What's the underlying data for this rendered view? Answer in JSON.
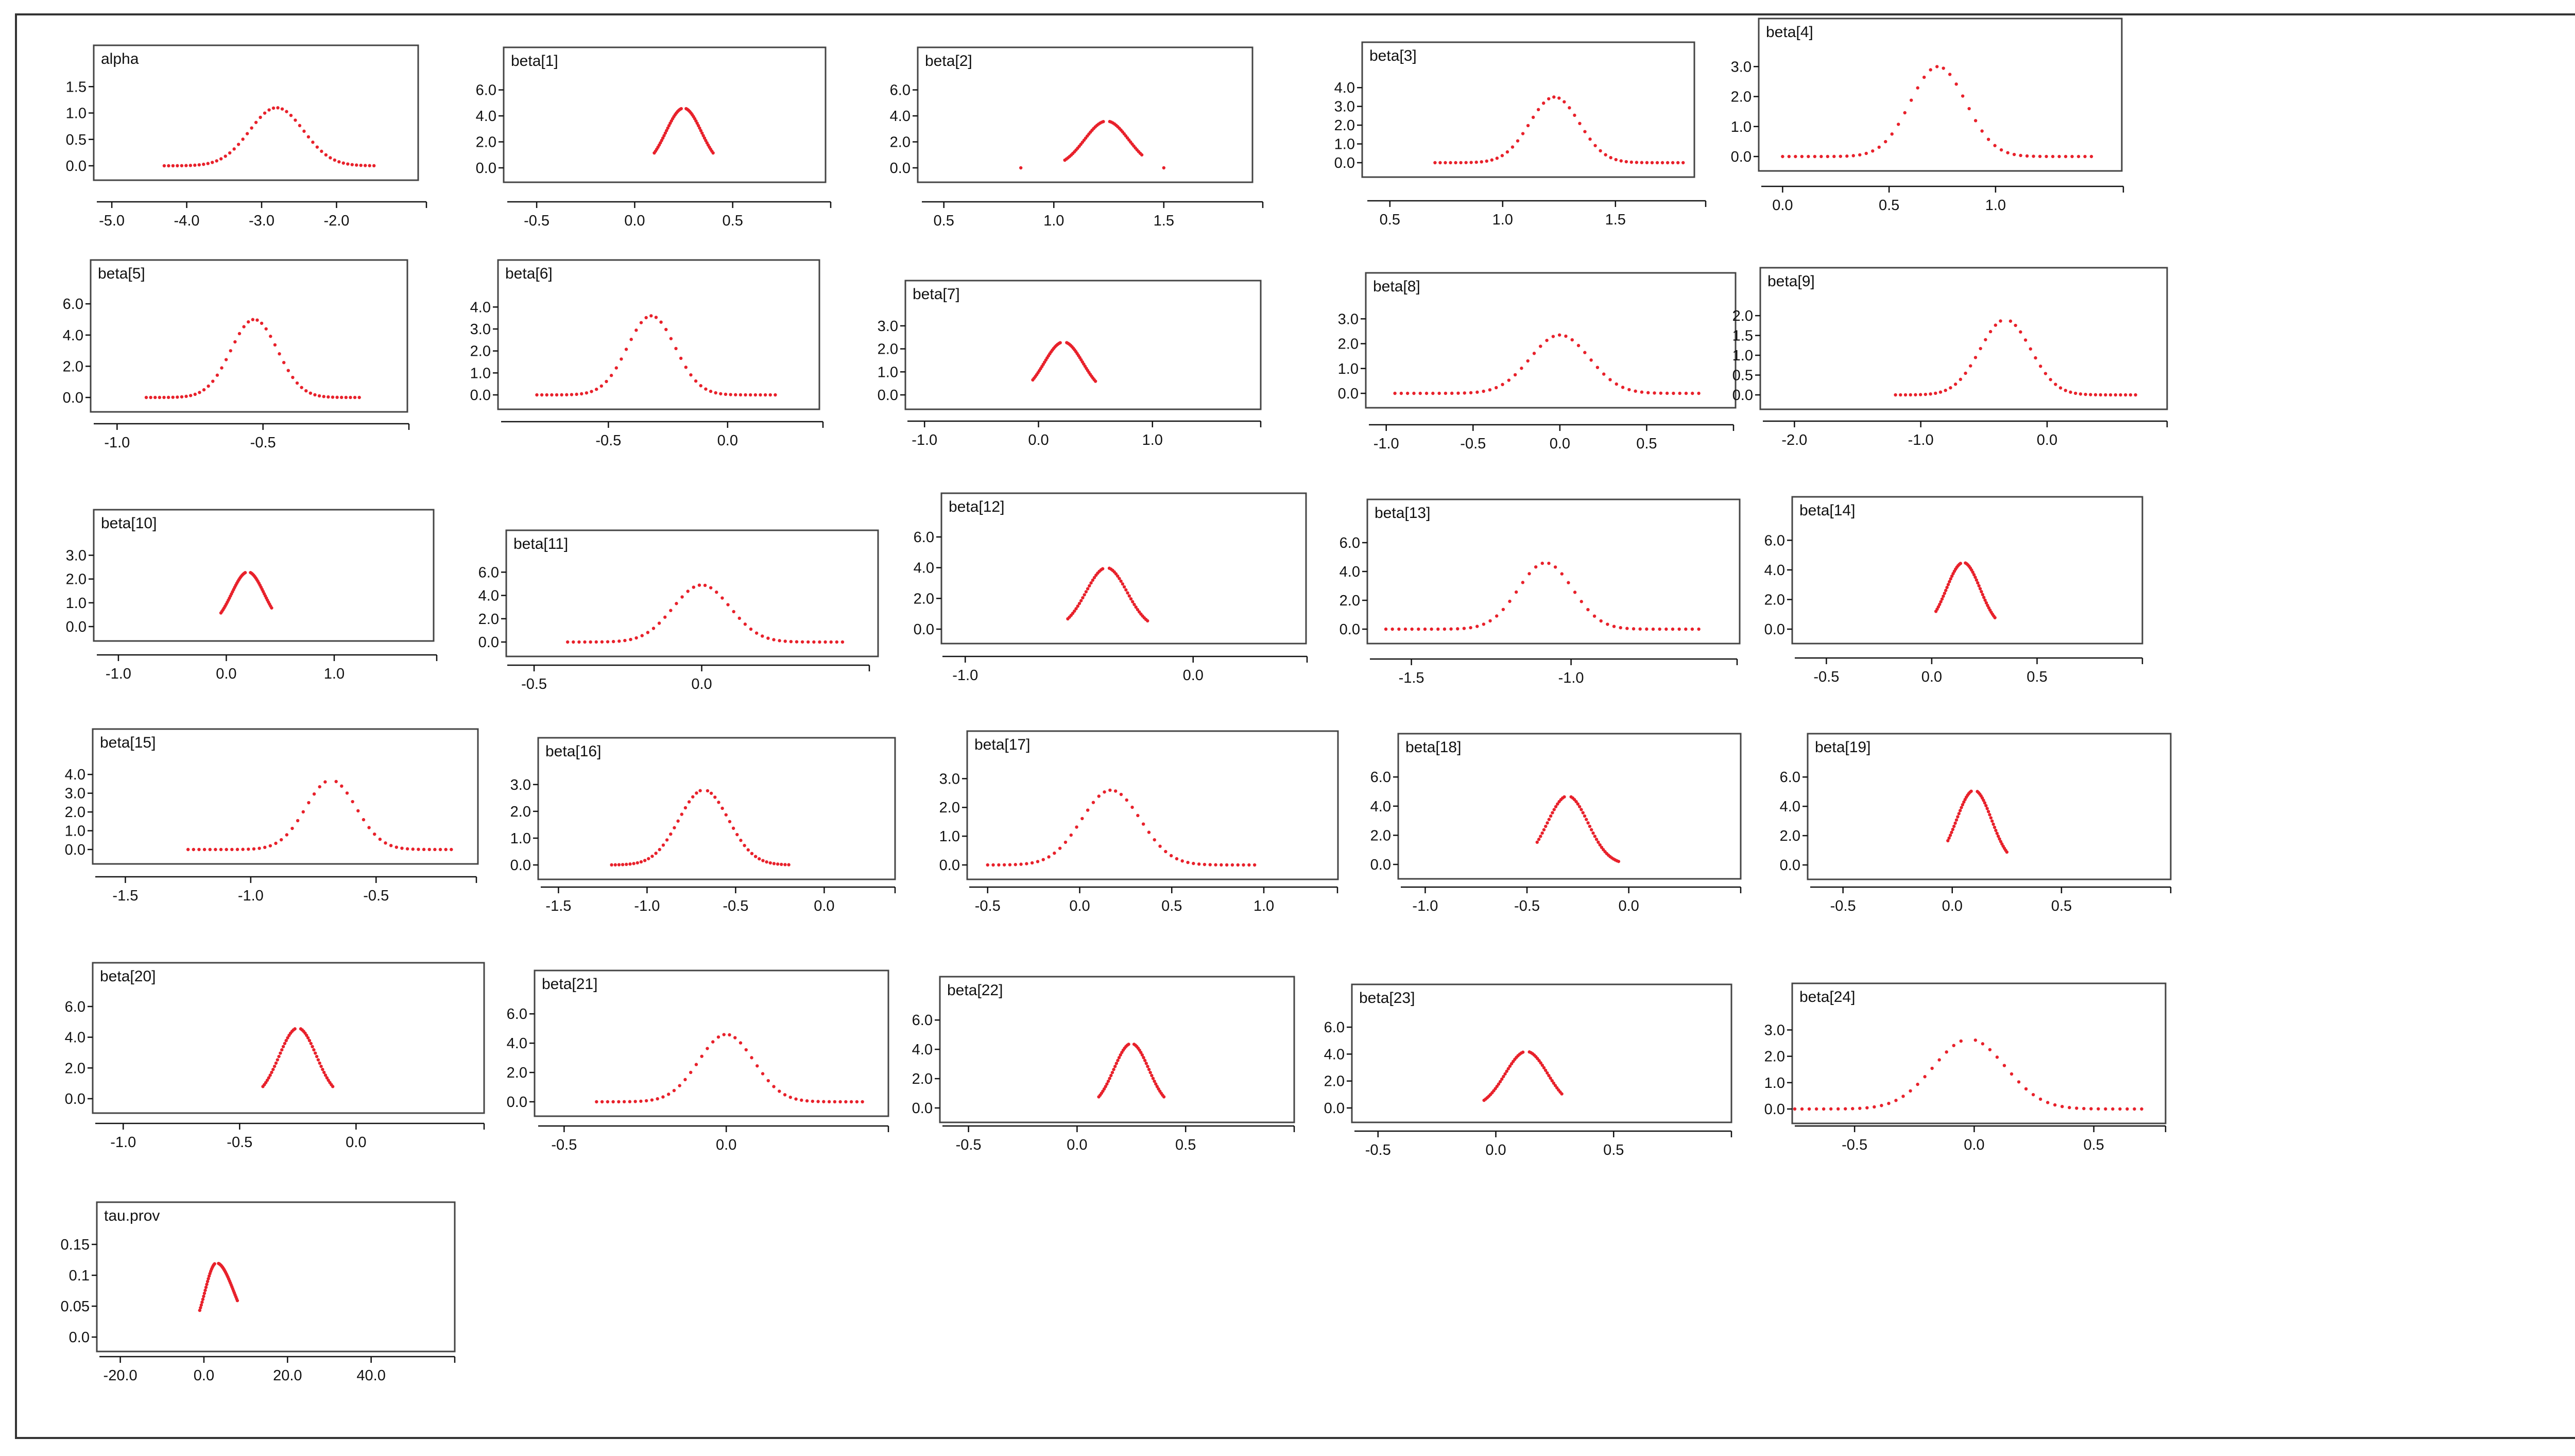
{
  "colors": {
    "curve": "#e8212b",
    "axis": "#111111",
    "frame": "#333333"
  },
  "chart_data": [
    {
      "type": "scatter",
      "title": "alpha",
      "xticks": [
        "-5.0",
        "-4.0",
        "-3.0",
        "-2.0"
      ],
      "xtick_values": [
        -5,
        -4,
        -3,
        -2
      ],
      "yticks": [
        "0.0",
        "0.5",
        "1.0",
        "1.5"
      ],
      "ytick_values": [
        0,
        0.5,
        1,
        1.5
      ],
      "xlim": [
        -5.2,
        -0.8
      ],
      "ylim": [
        0,
        1.6
      ],
      "density": {
        "mean": -2.8,
        "sd": 0.36,
        "peak": 1.1,
        "support": [
          -4.3,
          -1.5
        ],
        "gap": false
      }
    },
    {
      "type": "scatter",
      "title": "beta[1]",
      "xticks": [
        "-0.5",
        "0.0",
        "0.5"
      ],
      "xtick_values": [
        -0.5,
        0,
        0.5
      ],
      "yticks": [
        "0.0",
        "2.0",
        "4.0",
        "6.0"
      ],
      "ytick_values": [
        0,
        2,
        4,
        6
      ],
      "xlim": [
        -0.65,
        1.0
      ],
      "ylim": [
        0,
        6.5
      ],
      "density": {
        "mean": 0.25,
        "sd": 0.09,
        "peak": 4.6,
        "support": [
          0.1,
          0.4
        ],
        "gap": true
      }
    },
    {
      "type": "scatter",
      "title": "beta[2]",
      "xticks": [
        "0.5",
        "1.0",
        "1.5"
      ],
      "xtick_values": [
        0.5,
        1.0,
        1.5
      ],
      "yticks": [
        "0.0",
        "2.0",
        "4.0",
        "6.0"
      ],
      "ytick_values": [
        0,
        2,
        4,
        6
      ],
      "xlim": [
        0.4,
        1.95
      ],
      "ylim": [
        0,
        6.5
      ],
      "density": {
        "mean": 1.24,
        "sd": 0.1,
        "peak": 3.6,
        "support": [
          1.05,
          1.4
        ],
        "gap": true,
        "stray": [
          0.85,
          1.5
        ]
      }
    },
    {
      "type": "scatter",
      "title": "beta[3]",
      "xticks": [
        "0.5",
        "1.0",
        "1.5"
      ],
      "xtick_values": [
        0.5,
        1.0,
        1.5
      ],
      "yticks": [
        "0.0",
        "1.0",
        "2.0",
        "3.0",
        "4.0"
      ],
      "ytick_values": [
        0,
        1,
        2,
        3,
        4
      ],
      "xlim": [
        0.4,
        1.9
      ],
      "ylim": [
        0,
        4.5
      ],
      "density": {
        "mean": 1.23,
        "sd": 0.11,
        "peak": 3.5,
        "support": [
          0.7,
          1.8
        ],
        "gap": false
      }
    },
    {
      "type": "scatter",
      "title": "beta[4]",
      "xticks": [
        "0.0",
        "0.5",
        "1.0"
      ],
      "xtick_values": [
        0,
        0.5,
        1.0
      ],
      "yticks": [
        "0.0",
        "1.0",
        "2.0",
        "3.0"
      ],
      "ytick_values": [
        0,
        1,
        2,
        3
      ],
      "xlim": [
        -0.1,
        1.6
      ],
      "ylim": [
        0,
        3.4
      ],
      "density": {
        "mean": 0.73,
        "sd": 0.13,
        "peak": 3.0,
        "support": [
          0.0,
          1.45
        ],
        "gap": false
      }
    },
    {
      "type": "scatter",
      "title": "beta[5]",
      "xticks": [
        "-1.0",
        "-0.5"
      ],
      "xtick_values": [
        -1,
        -0.5
      ],
      "yticks": [
        "0.0",
        "2.0",
        "4.0",
        "6.0"
      ],
      "ytick_values": [
        0,
        2,
        4,
        6
      ],
      "xlim": [
        -1.08,
        -0.0
      ],
      "ylim": [
        0,
        6.5
      ],
      "density": {
        "mean": -0.53,
        "sd": 0.08,
        "peak": 5.0,
        "support": [
          -0.9,
          -0.17
        ],
        "gap": false
      }
    },
    {
      "type": "scatter",
      "title": "beta[6]",
      "xticks": [
        "-0.5",
        "0.0"
      ],
      "xtick_values": [
        -0.5,
        0
      ],
      "yticks": [
        "0.0",
        "1.0",
        "2.0",
        "3.0",
        "4.0"
      ],
      "ytick_values": [
        0,
        1,
        2,
        3,
        4
      ],
      "xlim": [
        -0.95,
        0.4
      ],
      "ylim": [
        0,
        4.5
      ],
      "density": {
        "mean": -0.32,
        "sd": 0.1,
        "peak": 3.6,
        "support": [
          -0.8,
          0.2
        ],
        "gap": false
      }
    },
    {
      "type": "scatter",
      "title": "beta[7]",
      "xticks": [
        "-1.0",
        "0.0",
        "1.0"
      ],
      "xtick_values": [
        -1,
        0,
        1
      ],
      "yticks": [
        "0.0",
        "1.0",
        "2.0",
        "3.0"
      ],
      "ytick_values": [
        0,
        1,
        2,
        3
      ],
      "xlim": [
        -1.15,
        1.95
      ],
      "ylim": [
        0,
        3.4
      ],
      "density": {
        "mean": 0.22,
        "sd": 0.17,
        "peak": 2.3,
        "support": [
          -0.05,
          0.5
        ],
        "gap": true
      }
    },
    {
      "type": "scatter",
      "title": "beta[8]",
      "xticks": [
        "-1.0",
        "-0.5",
        "0.0",
        "0.5"
      ],
      "xtick_values": [
        -1,
        -0.5,
        0,
        0.5
      ],
      "yticks": [
        "0.0",
        "1.0",
        "2.0",
        "3.0"
      ],
      "ytick_values": [
        0,
        1,
        2,
        3
      ],
      "xlim": [
        -1.1,
        1.0
      ],
      "ylim": [
        0,
        3.4
      ],
      "density": {
        "mean": 0.0,
        "sd": 0.17,
        "peak": 2.35,
        "support": [
          -0.95,
          0.8
        ],
        "gap": false
      }
    },
    {
      "type": "scatter",
      "title": "beta[9]",
      "xticks": [
        "-2.0",
        "-1.0",
        "0.0"
      ],
      "xtick_values": [
        -2,
        -1,
        0
      ],
      "yticks": [
        "0.0",
        "0.5",
        "1.0",
        "1.5",
        "2.0"
      ],
      "ytick_values": [
        0,
        0.5,
        1,
        1.5,
        2
      ],
      "xlim": [
        -2.25,
        0.95
      ],
      "ylim": [
        0,
        2.3
      ],
      "density": {
        "mean": -0.33,
        "sd": 0.2,
        "peak": 1.9,
        "support": [
          -1.2,
          0.7
        ],
        "gap": true
      }
    },
    {
      "type": "scatter",
      "title": "beta[10]",
      "xticks": [
        "-1.0",
        "0.0",
        "1.0"
      ],
      "xtick_values": [
        -1,
        0,
        1
      ],
      "yticks": [
        "0.0",
        "1.0",
        "2.0",
        "3.0"
      ],
      "ytick_values": [
        0,
        1,
        2,
        3
      ],
      "xlim": [
        -1.2,
        1.95
      ],
      "ylim": [
        0,
        3.4
      ],
      "density": {
        "mean": 0.2,
        "sd": 0.15,
        "peak": 2.3,
        "support": [
          -0.05,
          0.42
        ],
        "gap": true
      }
    },
    {
      "type": "scatter",
      "title": "beta[11]",
      "xticks": [
        "-0.5",
        "0.0"
      ],
      "xtick_values": [
        -0.5,
        0
      ],
      "yticks": [
        "0.0",
        "2.0",
        "4.0",
        "6.0"
      ],
      "ytick_values": [
        0,
        2,
        4,
        6
      ],
      "xlim": [
        -0.58,
        0.5
      ],
      "ylim": [
        0,
        6.5
      ],
      "density": {
        "mean": 0.0,
        "sd": 0.085,
        "peak": 4.9,
        "support": [
          -0.4,
          0.42
        ],
        "gap": false
      }
    },
    {
      "type": "scatter",
      "title": "beta[12]",
      "xticks": [
        "-1.0",
        "0.0"
      ],
      "xtick_values": [
        -1,
        0
      ],
      "yticks": [
        "0.0",
        "2.0",
        "4.0",
        "6.0"
      ],
      "ytick_values": [
        0,
        2,
        4,
        6
      ],
      "xlim": [
        -1.1,
        0.5
      ],
      "ylim": [
        0,
        6.5
      ],
      "density": {
        "mean": -0.38,
        "sd": 0.09,
        "peak": 4.0,
        "support": [
          -0.55,
          -0.2
        ],
        "gap": true
      }
    },
    {
      "type": "scatter",
      "title": "beta[13]",
      "xticks": [
        "-1.5",
        "-1.0"
      ],
      "xtick_values": [
        -1.5,
        -1.0
      ],
      "yticks": [
        "0.0",
        "2.0",
        "4.0",
        "6.0"
      ],
      "ytick_values": [
        0,
        2,
        4,
        6
      ],
      "xlim": [
        -1.63,
        -0.48
      ],
      "ylim": [
        0,
        6.5
      ],
      "density": {
        "mean": -1.08,
        "sd": 0.085,
        "peak": 4.6,
        "support": [
          -1.58,
          -0.6
        ],
        "gap": false
      }
    },
    {
      "type": "scatter",
      "title": "beta[14]",
      "xticks": [
        "-0.5",
        "0.0",
        "0.5"
      ],
      "xtick_values": [
        -0.5,
        0,
        0.5
      ],
      "yticks": [
        "0.0",
        "2.0",
        "4.0",
        "6.0"
      ],
      "ytick_values": [
        0,
        2,
        4,
        6
      ],
      "xlim": [
        -0.65,
        1.0
      ],
      "ylim": [
        0,
        6.5
      ],
      "density": {
        "mean": 0.15,
        "sd": 0.08,
        "peak": 4.5,
        "support": [
          0.02,
          0.3
        ],
        "gap": true
      }
    },
    {
      "type": "scatter",
      "title": "beta[15]",
      "xticks": [
        "-1.5",
        "-1.0",
        "-0.5"
      ],
      "xtick_values": [
        -1.5,
        -1.0,
        -0.5
      ],
      "yticks": [
        "0.0",
        "1.0",
        "2.0",
        "3.0",
        "4.0"
      ],
      "ytick_values": [
        0,
        1,
        2,
        3,
        4
      ],
      "xlim": [
        -1.62,
        -0.1
      ],
      "ylim": [
        0,
        4.5
      ],
      "density": {
        "mean": -0.68,
        "sd": 0.1,
        "peak": 3.7,
        "support": [
          -1.25,
          -0.2
        ],
        "gap": true
      }
    },
    {
      "type": "scatter",
      "title": "beta[16]",
      "xticks": [
        "-1.5",
        "-1.0",
        "-0.5",
        "0.0"
      ],
      "xtick_values": [
        -1.5,
        -1.0,
        -0.5,
        0
      ],
      "yticks": [
        "0.0",
        "1.0",
        "2.0",
        "3.0"
      ],
      "ytick_values": [
        0,
        1,
        2,
        3
      ],
      "xlim": [
        -1.6,
        0.4
      ],
      "ylim": [
        0,
        3.4
      ],
      "density": {
        "mean": -0.68,
        "sd": 0.14,
        "peak": 2.8,
        "support": [
          -1.2,
          -0.2
        ],
        "gap": true
      }
    },
    {
      "type": "scatter",
      "title": "beta[17]",
      "xticks": [
        "-0.5",
        "0.0",
        "0.5",
        "1.0"
      ],
      "xtick_values": [
        -0.5,
        0,
        0.5,
        1
      ],
      "yticks": [
        "0.0",
        "1.0",
        "2.0",
        "3.0"
      ],
      "ytick_values": [
        0,
        1,
        2,
        3
      ],
      "xlim": [
        -0.6,
        1.4
      ],
      "ylim": [
        0,
        3.4
      ],
      "density": {
        "mean": 0.17,
        "sd": 0.16,
        "peak": 2.6,
        "support": [
          -0.5,
          0.95
        ],
        "gap": false
      }
    },
    {
      "type": "scatter",
      "title": "beta[18]",
      "xticks": [
        "-1.0",
        "-0.5",
        "0.0"
      ],
      "xtick_values": [
        -1,
        -0.5,
        0
      ],
      "yticks": [
        "0.0",
        "2.0",
        "4.0",
        "6.0"
      ],
      "ytick_values": [
        0,
        2,
        4,
        6
      ],
      "xlim": [
        -1.12,
        0.55
      ],
      "ylim": [
        0,
        6.5
      ],
      "density": {
        "mean": -0.3,
        "sd": 0.1,
        "peak": 4.7,
        "support": [
          -0.45,
          -0.05
        ],
        "gap": true
      }
    },
    {
      "type": "scatter",
      "title": "beta[19]",
      "xticks": [
        "-0.5",
        "0.0",
        "0.5"
      ],
      "xtick_values": [
        -0.5,
        0,
        0.5
      ],
      "yticks": [
        "0.0",
        "2.0",
        "4.0",
        "6.0"
      ],
      "ytick_values": [
        0,
        2,
        4,
        6
      ],
      "xlim": [
        -0.65,
        1.0
      ],
      "ylim": [
        0,
        6.5
      ],
      "density": {
        "mean": 0.1,
        "sd": 0.08,
        "peak": 5.1,
        "support": [
          -0.02,
          0.25
        ],
        "gap": true
      }
    },
    {
      "type": "scatter",
      "title": "beta[20]",
      "xticks": [
        "-1.0",
        "-0.5",
        "0.0"
      ],
      "xtick_values": [
        -1,
        -0.5,
        0
      ],
      "yticks": [
        "0.0",
        "2.0",
        "4.0",
        "6.0"
      ],
      "ytick_values": [
        0,
        2,
        4,
        6
      ],
      "xlim": [
        -1.12,
        0.55
      ],
      "ylim": [
        0,
        6.5
      ],
      "density": {
        "mean": -0.25,
        "sd": 0.08,
        "peak": 4.6,
        "support": [
          -0.4,
          -0.1
        ],
        "gap": true
      }
    },
    {
      "type": "scatter",
      "title": "beta[21]",
      "xticks": [
        "-0.5",
        "0.0"
      ],
      "xtick_values": [
        -0.5,
        0
      ],
      "yticks": [
        "0.0",
        "2.0",
        "4.0",
        "6.0"
      ],
      "ytick_values": [
        0,
        2,
        4,
        6
      ],
      "xlim": [
        -0.58,
        0.5
      ],
      "ylim": [
        0,
        6.5
      ],
      "density": {
        "mean": 0.0,
        "sd": 0.085,
        "peak": 4.6,
        "support": [
          -0.4,
          0.42
        ],
        "gap": false
      }
    },
    {
      "type": "scatter",
      "title": "beta[22]",
      "xticks": [
        "-0.5",
        "0.0",
        "0.5"
      ],
      "xtick_values": [
        -0.5,
        0,
        0.5
      ],
      "yticks": [
        "0.0",
        "2.0",
        "4.0",
        "6.0"
      ],
      "ytick_values": [
        0,
        2,
        4,
        6
      ],
      "xlim": [
        -0.62,
        1.0
      ],
      "ylim": [
        0,
        6.5
      ],
      "density": {
        "mean": 0.25,
        "sd": 0.08,
        "peak": 4.4,
        "support": [
          0.1,
          0.4
        ],
        "gap": true
      }
    },
    {
      "type": "scatter",
      "title": "beta[23]",
      "xticks": [
        "-0.5",
        "0.0",
        "0.5"
      ],
      "xtick_values": [
        -0.5,
        0,
        0.5
      ],
      "yticks": [
        "0.0",
        "2.0",
        "4.0",
        "6.0"
      ],
      "ytick_values": [
        0,
        2,
        4,
        6
      ],
      "xlim": [
        -0.6,
        1.0
      ],
      "ylim": [
        0,
        6.5
      ],
      "density": {
        "mean": 0.13,
        "sd": 0.09,
        "peak": 4.2,
        "support": [
          -0.05,
          0.28
        ],
        "gap": true
      }
    },
    {
      "type": "scatter",
      "title": "beta[24]",
      "xticks": [
        "-0.5",
        "0.0",
        "0.5"
      ],
      "xtick_values": [
        -0.5,
        0,
        0.5
      ],
      "yticks": [
        "0.0",
        "1.0",
        "2.0",
        "3.0"
      ],
      "ytick_values": [
        0,
        1,
        2,
        3
      ],
      "xlim": [
        -0.75,
        0.8
      ],
      "ylim": [
        0,
        3.4
      ],
      "density": {
        "mean": -0.02,
        "sd": 0.15,
        "peak": 2.65,
        "support": [
          -0.75,
          0.7
        ],
        "gap": true
      }
    },
    {
      "type": "scatter",
      "title": "tau.prov",
      "xticks": [
        "-20.0",
        "0.0",
        "20.0",
        "40.0"
      ],
      "xtick_values": [
        -20,
        0,
        20,
        40
      ],
      "yticks": [
        "0.0",
        "0.05",
        "0.1",
        "0.15"
      ],
      "ytick_values": [
        0,
        0.05,
        0.1,
        0.15
      ],
      "xlim": [
        -25,
        60
      ],
      "ylim": [
        0,
        0.16
      ],
      "density": {
        "mean": 3,
        "sd": 3.5,
        "peak": 0.12,
        "support": [
          -1,
          8
        ],
        "gap": true,
        "skew": true
      }
    }
  ]
}
